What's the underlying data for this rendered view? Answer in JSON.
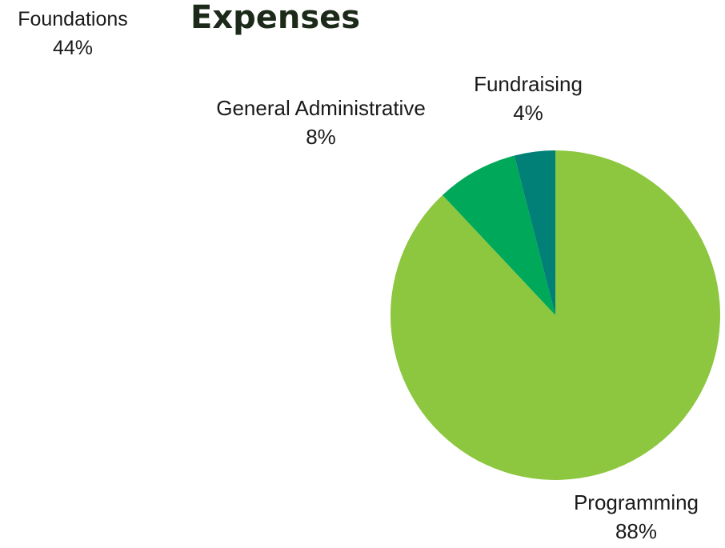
{
  "chart_data": {
    "type": "pie",
    "title": "Expenses",
    "slices": [
      {
        "label": "Programming",
        "value": 88,
        "display": "88%",
        "color": "#8dc63f"
      },
      {
        "label": "General Administrative",
        "value": 8,
        "display": "8%",
        "color": "#00a85a"
      },
      {
        "label": "Fundraising",
        "value": 4,
        "display": "4%",
        "color": "#008076"
      }
    ],
    "start_angle_deg": 0,
    "direction": "clockwise"
  },
  "partial_label": {
    "label": "Foundations",
    "display": "44%"
  }
}
